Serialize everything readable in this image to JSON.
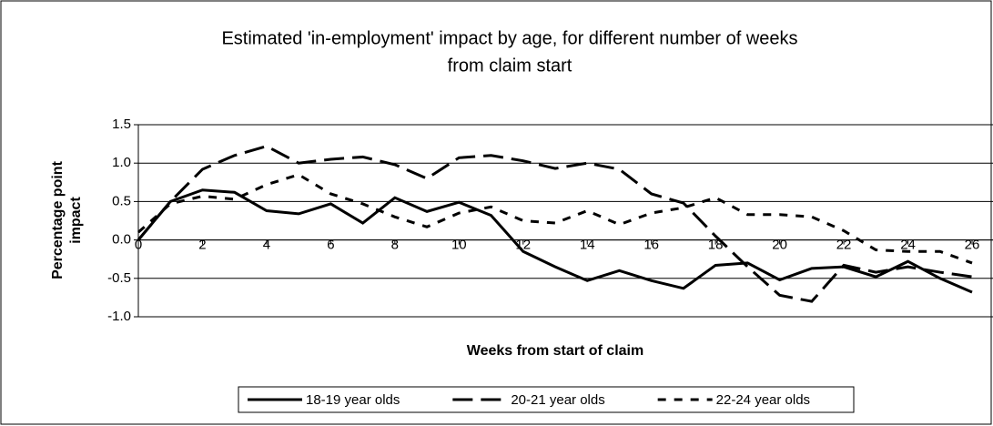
{
  "chart_data": {
    "type": "line",
    "title": [
      "Estimated 'in-employment' impact by age, for different number of weeks",
      "from claim start"
    ],
    "xlabel": "Weeks from start of claim",
    "ylabel": [
      "Percentage point",
      "impact"
    ],
    "x": [
      0,
      1,
      2,
      3,
      4,
      5,
      6,
      7,
      8,
      9,
      10,
      11,
      12,
      13,
      14,
      15,
      16,
      17,
      18,
      19,
      20,
      21,
      22,
      23,
      24,
      25,
      26
    ],
    "series": [
      {
        "name": "18-19 year olds",
        "color": "#000000",
        "style": "solid",
        "values": [
          0,
          0.5,
          0.65,
          0.62,
          0.38,
          0.34,
          0.47,
          0.22,
          0.55,
          0.37,
          0.49,
          0.32,
          -0.15,
          -0.35,
          -0.53,
          -0.4,
          -0.53,
          -0.63,
          -0.33,
          -0.3,
          -0.52,
          -0.37,
          -0.35,
          -0.48,
          -0.28,
          -0.5,
          -0.68
        ]
      },
      {
        "name": "20-21 year olds",
        "color": "#000000",
        "style": "dashed",
        "values": [
          0,
          0.5,
          0.92,
          1.1,
          1.22,
          1.0,
          1.05,
          1.08,
          0.98,
          0.8,
          1.07,
          1.1,
          1.03,
          0.93,
          1.0,
          0.92,
          0.6,
          0.48,
          0.05,
          -0.35,
          -0.72,
          -0.8,
          -0.33,
          -0.42,
          -0.35,
          -0.42,
          -0.48
        ]
      },
      {
        "name": "22-24 year olds",
        "color": "#000000",
        "style": "dotted",
        "values": [
          0.1,
          0.47,
          0.57,
          0.53,
          0.72,
          0.85,
          0.6,
          0.47,
          0.3,
          0.17,
          0.35,
          0.43,
          0.25,
          0.22,
          0.38,
          0.2,
          0.35,
          0.42,
          0.55,
          0.33,
          0.33,
          0.3,
          0.12,
          -0.13,
          -0.15,
          -0.15,
          -0.3
        ]
      }
    ],
    "xlim": [
      0,
      26
    ],
    "xticks": [
      0,
      2,
      4,
      6,
      8,
      10,
      12,
      14,
      16,
      18,
      20,
      22,
      24,
      26
    ],
    "ylim": [
      -1,
      1.5
    ],
    "yticks": [
      1.5,
      {
        "value": 1,
        "label": "1.0"
      },
      {
        "value": 0.5,
        "label": "0.5"
      },
      {
        "value": 0,
        "label": "0.0"
      },
      -0.5,
      {
        "value": -1,
        "label": "-1.0"
      }
    ],
    "grid": true,
    "legend": "bottom"
  }
}
